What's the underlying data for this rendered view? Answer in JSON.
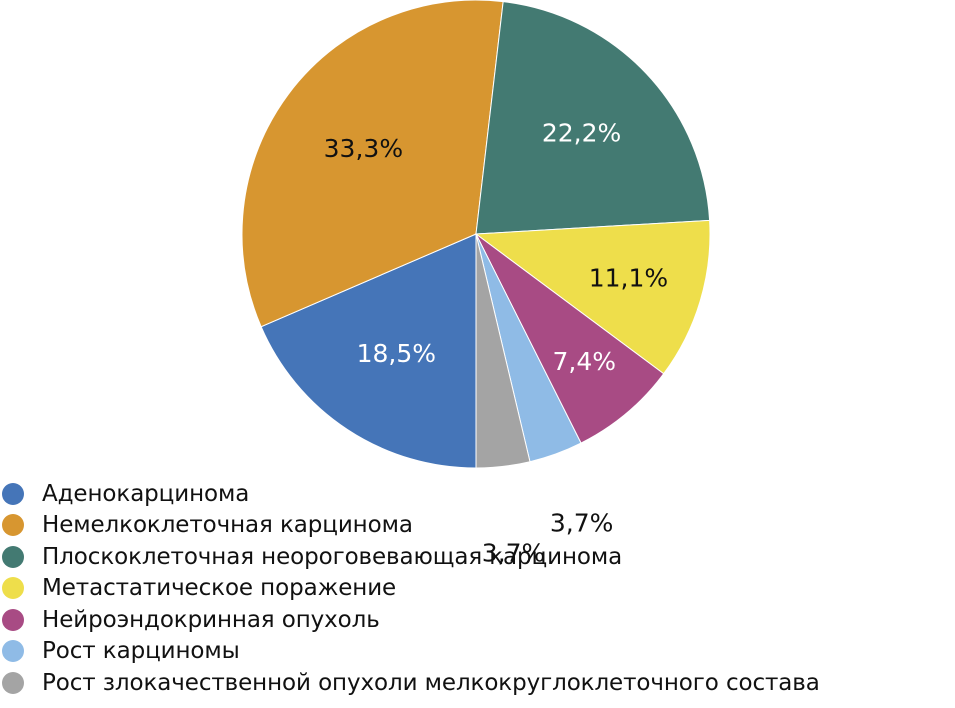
{
  "chart_data": {
    "type": "pie",
    "title": "",
    "categories": [
      "Аденокарцинома",
      "Немелкоклеточная карцинома",
      "Плоскоклеточная неороговевающая карцинома",
      "Метастатическое поражение",
      "Нейроэндокринная опухоль",
      "Рост карциномы",
      "Рост злокачественной опухоли мелкокруглоклеточного состава"
    ],
    "values": [
      18.5,
      33.3,
      22.2,
      11.1,
      7.4,
      3.7,
      3.7
    ],
    "labels": [
      "18,5%",
      "33,3%",
      "22,2%",
      "11,1%",
      "7,4%",
      "3,7%",
      "3,7%"
    ],
    "colors": [
      "#4575b8",
      "#d79630",
      "#437a72",
      "#eede4b",
      "#a84b84",
      "#8fbbe6",
      "#a4a4a4"
    ],
    "label_colors": [
      "#ffffff",
      "#111111",
      "#ffffff",
      "#111111",
      "#ffffff",
      "#111111",
      "#111111"
    ],
    "legend_position": "bottom-left",
    "start_angle_deg": 90,
    "direction": "clockwise-from-bottom"
  }
}
